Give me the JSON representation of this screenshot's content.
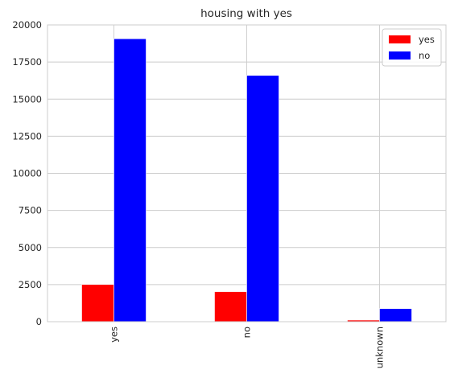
{
  "chart_data": {
    "type": "bar",
    "title": "housing with yes",
    "xlabel": "",
    "ylabel": "",
    "categories": [
      "yes",
      "no",
      "unknown"
    ],
    "series": [
      {
        "name": "yes",
        "color": "#ff0000",
        "values": [
          2507,
          2026,
          107
        ]
      },
      {
        "name": "no",
        "color": "#0000ff",
        "values": [
          19069,
          16596,
          883
        ]
      }
    ],
    "ylim": [
      0,
      20000
    ],
    "yticks": [
      "0",
      "2500",
      "5000",
      "7500",
      "10000",
      "12500",
      "15000",
      "17500",
      "20000"
    ],
    "grid": true,
    "legend_position": "top-right"
  }
}
